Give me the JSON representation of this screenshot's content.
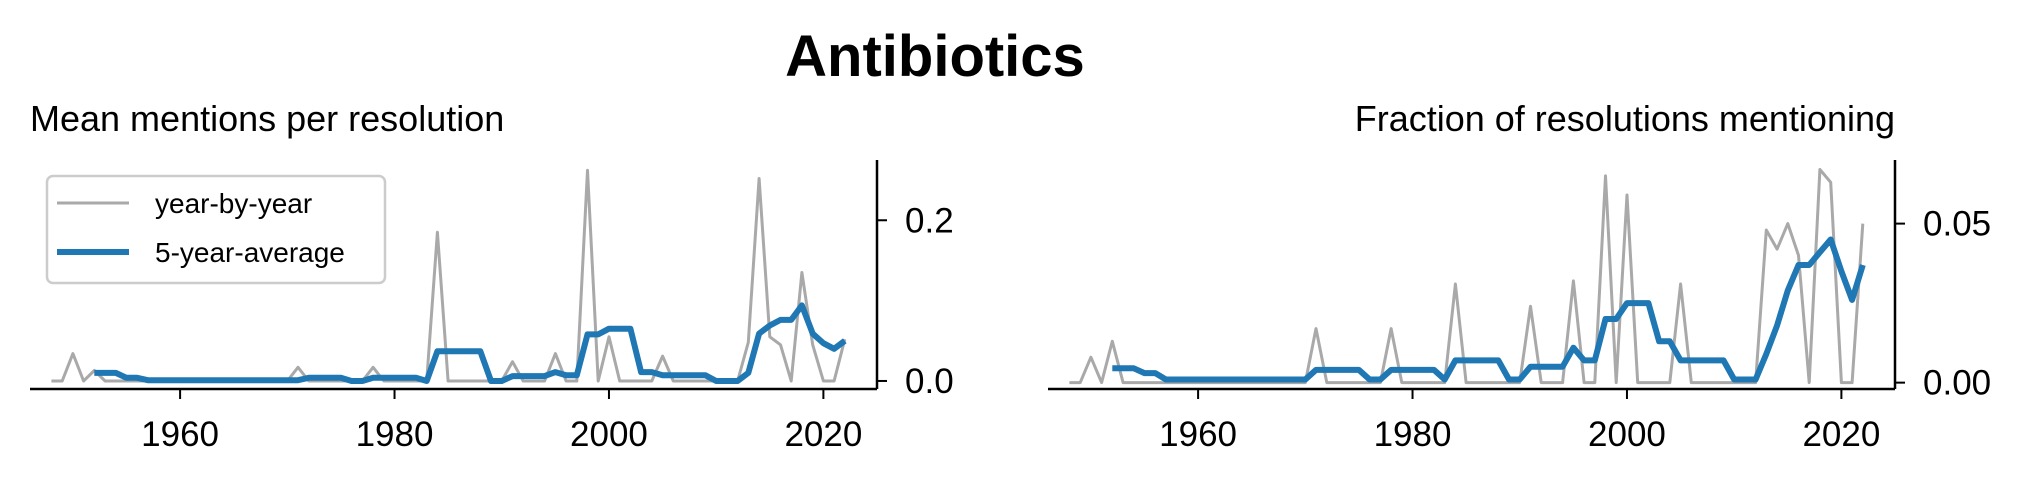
{
  "figure_title": "Antibiotics",
  "legend": {
    "items": [
      "year-by-year",
      "5-year-average"
    ]
  },
  "colors": {
    "year_by_year": "#a9a9a9",
    "five_year_average": "#1f77b4",
    "axis": "#000000"
  },
  "chart_data": [
    {
      "type": "line",
      "title": "Mean mentions per resolution",
      "xlabel": "",
      "ylabel": "",
      "xlim": [
        1946,
        2025
      ],
      "ylim": [
        -0.01,
        0.275
      ],
      "x_ticks": [
        1960,
        1980,
        2000,
        2020
      ],
      "y_ticks": [
        0.0,
        0.2
      ],
      "y_tick_labels": [
        "0.0",
        "0.2"
      ],
      "y_axis_side": "right",
      "legend_position": "upper-left",
      "grid": false,
      "series": [
        {
          "name": "year-by-year",
          "x": [
            1948,
            1949,
            1950,
            1951,
            1952,
            1953,
            1954,
            1955,
            1956,
            1957,
            1958,
            1959,
            1960,
            1961,
            1962,
            1963,
            1964,
            1965,
            1966,
            1967,
            1968,
            1969,
            1970,
            1971,
            1972,
            1973,
            1974,
            1975,
            1976,
            1977,
            1978,
            1979,
            1980,
            1981,
            1982,
            1983,
            1984,
            1985,
            1986,
            1987,
            1988,
            1989,
            1990,
            1991,
            1992,
            1993,
            1994,
            1995,
            1996,
            1997,
            1998,
            1999,
            2000,
            2001,
            2002,
            2003,
            2004,
            2005,
            2006,
            2007,
            2008,
            2009,
            2010,
            2011,
            2012,
            2013,
            2014,
            2015,
            2016,
            2017,
            2018,
            2019,
            2020,
            2021,
            2022
          ],
          "values": [
            0,
            0,
            0.034,
            0,
            0.013,
            0,
            0,
            0,
            0,
            0,
            0,
            0,
            0,
            0,
            0,
            0,
            0,
            0,
            0,
            0,
            0,
            0,
            0,
            0.017,
            0,
            0,
            0,
            0,
            0,
            0,
            0.017,
            0,
            0,
            0,
            0,
            0,
            0.185,
            0,
            0,
            0,
            0,
            0,
            0,
            0.024,
            0,
            0,
            0,
            0.034,
            0,
            0,
            0.262,
            0,
            0.055,
            0,
            0,
            0,
            0,
            0.031,
            0,
            0,
            0,
            0,
            0,
            0,
            0,
            0.048,
            0.252,
            0.055,
            0.045,
            0,
            0.135,
            0.045,
            0,
            0,
            0.052
          ]
        },
        {
          "name": "5-year-average",
          "x": [
            1952,
            1953,
            1954,
            1955,
            1956,
            1957,
            1958,
            1959,
            1960,
            1961,
            1962,
            1963,
            1964,
            1965,
            1966,
            1967,
            1968,
            1969,
            1970,
            1971,
            1972,
            1973,
            1974,
            1975,
            1976,
            1977,
            1978,
            1979,
            1980,
            1981,
            1982,
            1983,
            1984,
            1985,
            1986,
            1987,
            1988,
            1989,
            1990,
            1991,
            1992,
            1993,
            1994,
            1995,
            1996,
            1997,
            1998,
            1999,
            2000,
            2001,
            2002,
            2003,
            2004,
            2005,
            2006,
            2007,
            2008,
            2009,
            2010,
            2011,
            2012,
            2013,
            2014,
            2015,
            2016,
            2017,
            2018,
            2019,
            2020,
            2021,
            2022
          ],
          "values": [
            0.01,
            0.01,
            0.01,
            0.004,
            0.004,
            0.001,
            0.001,
            0.001,
            0.001,
            0.001,
            0.001,
            0.001,
            0.001,
            0.001,
            0.001,
            0.001,
            0.001,
            0.001,
            0.001,
            0.001,
            0.004,
            0.004,
            0.004,
            0.004,
            0.0,
            0.0,
            0.004,
            0.004,
            0.004,
            0.004,
            0.004,
            0.0,
            0.037,
            0.037,
            0.037,
            0.037,
            0.037,
            0.0,
            0.0,
            0.006,
            0.006,
            0.006,
            0.006,
            0.011,
            0.007,
            0.007,
            0.058,
            0.058,
            0.065,
            0.065,
            0.065,
            0.011,
            0.011,
            0.007,
            0.007,
            0.007,
            0.007,
            0.007,
            0.0,
            0.0,
            0.0,
            0.01,
            0.059,
            0.069,
            0.076,
            0.076,
            0.094,
            0.059,
            0.047,
            0.04,
            0.05
          ]
        }
      ]
    },
    {
      "type": "line",
      "title": "Fraction of resolutions mentioning",
      "xlabel": "",
      "ylabel": "",
      "xlim": [
        1946,
        2025
      ],
      "ylim": [
        -0.002,
        0.07
      ],
      "x_ticks": [
        1960,
        1980,
        2000,
        2020
      ],
      "y_ticks": [
        0.0,
        0.05
      ],
      "y_tick_labels": [
        "0.00",
        "0.05"
      ],
      "y_axis_side": "right",
      "grid": false,
      "series": [
        {
          "name": "year-by-year",
          "x": [
            1948,
            1949,
            1950,
            1951,
            1952,
            1953,
            1954,
            1955,
            1956,
            1957,
            1958,
            1959,
            1960,
            1961,
            1962,
            1963,
            1964,
            1965,
            1966,
            1967,
            1968,
            1969,
            1970,
            1971,
            1972,
            1973,
            1974,
            1975,
            1976,
            1977,
            1978,
            1979,
            1980,
            1981,
            1982,
            1983,
            1984,
            1985,
            1986,
            1987,
            1988,
            1989,
            1990,
            1991,
            1992,
            1993,
            1994,
            1995,
            1996,
            1997,
            1998,
            1999,
            2000,
            2001,
            2002,
            2003,
            2004,
            2005,
            2006,
            2007,
            2008,
            2009,
            2010,
            2011,
            2012,
            2013,
            2014,
            2015,
            2016,
            2017,
            2018,
            2019,
            2020,
            2021,
            2022
          ],
          "values": [
            0,
            0,
            0.008,
            0,
            0.013,
            0,
            0,
            0,
            0,
            0,
            0,
            0,
            0,
            0,
            0,
            0,
            0,
            0,
            0,
            0,
            0,
            0,
            0,
            0.017,
            0,
            0,
            0,
            0,
            0,
            0,
            0.017,
            0,
            0,
            0,
            0,
            0,
            0.031,
            0,
            0,
            0,
            0,
            0,
            0,
            0.024,
            0,
            0,
            0,
            0.032,
            0,
            0,
            0.065,
            0,
            0.059,
            0,
            0,
            0,
            0,
            0.031,
            0,
            0,
            0,
            0,
            0,
            0,
            0,
            0.048,
            0.042,
            0.05,
            0.04,
            0,
            0.067,
            0.063,
            0,
            0,
            0.05
          ]
        },
        {
          "name": "5-year-average",
          "x": [
            1952,
            1953,
            1954,
            1955,
            1956,
            1957,
            1958,
            1959,
            1960,
            1961,
            1962,
            1963,
            1964,
            1965,
            1966,
            1967,
            1968,
            1969,
            1970,
            1971,
            1972,
            1973,
            1974,
            1975,
            1976,
            1977,
            1978,
            1979,
            1980,
            1981,
            1982,
            1983,
            1984,
            1985,
            1986,
            1987,
            1988,
            1989,
            1990,
            1991,
            1992,
            1993,
            1994,
            1995,
            1996,
            1997,
            1998,
            1999,
            2000,
            2001,
            2002,
            2003,
            2004,
            2005,
            2006,
            2007,
            2008,
            2009,
            2010,
            2011,
            2012,
            2013,
            2014,
            2015,
            2016,
            2017,
            2018,
            2019,
            2020,
            2021,
            2022
          ],
          "values": [
            0.0045,
            0.0045,
            0.0045,
            0.003,
            0.003,
            0.001,
            0.001,
            0.001,
            0.001,
            0.001,
            0.001,
            0.001,
            0.001,
            0.001,
            0.001,
            0.001,
            0.001,
            0.001,
            0.001,
            0.004,
            0.004,
            0.004,
            0.004,
            0.004,
            0.001,
            0.001,
            0.004,
            0.004,
            0.004,
            0.004,
            0.004,
            0.001,
            0.007,
            0.007,
            0.007,
            0.007,
            0.007,
            0.001,
            0.001,
            0.005,
            0.005,
            0.005,
            0.005,
            0.011,
            0.007,
            0.007,
            0.02,
            0.02,
            0.025,
            0.025,
            0.025,
            0.013,
            0.013,
            0.007,
            0.007,
            0.007,
            0.007,
            0.007,
            0.001,
            0.001,
            0.001,
            0.009,
            0.018,
            0.029,
            0.037,
            0.037,
            0.041,
            0.045,
            0.035,
            0.026,
            0.037
          ]
        }
      ]
    }
  ]
}
